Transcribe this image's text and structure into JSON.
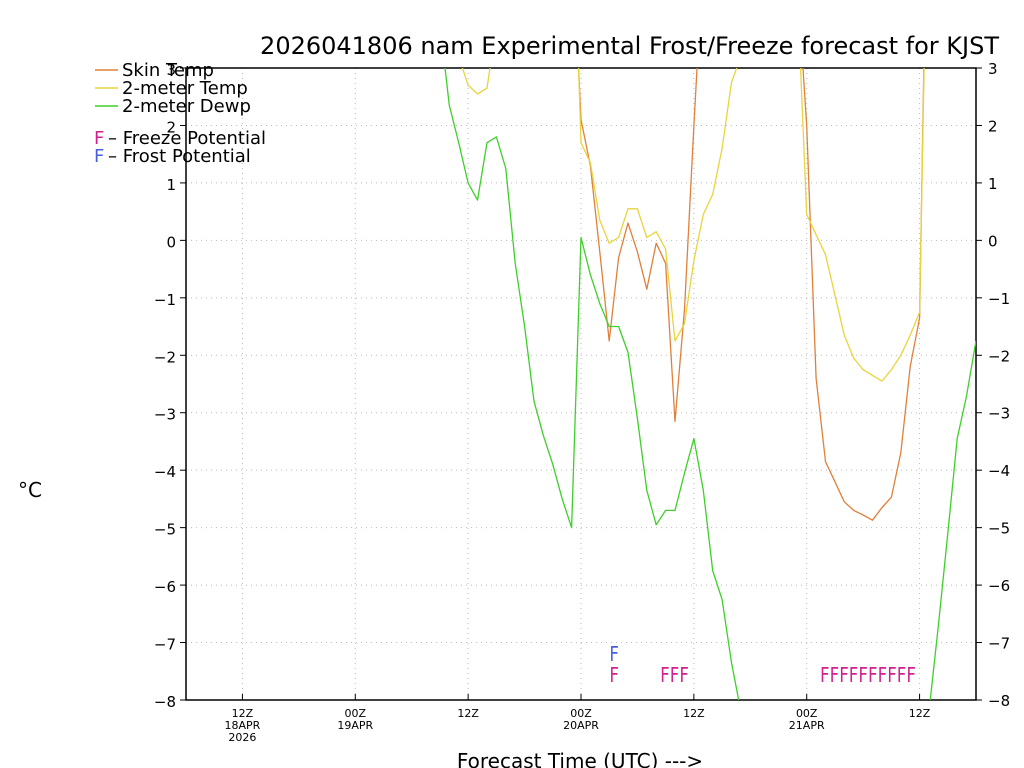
{
  "chart_data": {
    "type": "line",
    "title": "2026041806 nam Experimental Frost/Freeze forecast for KJST",
    "ylabel": "°C",
    "xlabel": "Forecast Time (UTC) --->",
    "ylim": [
      -8,
      3
    ],
    "xlim": [
      0,
      84
    ],
    "yticks": [
      -8,
      -7,
      -6,
      -5,
      -4,
      -3,
      -2,
      -1,
      0,
      1,
      2,
      3
    ],
    "xticks": [
      {
        "x": 6,
        "labels": [
          "12Z",
          "18APR",
          "2026"
        ]
      },
      {
        "x": 18,
        "labels": [
          "00Z",
          "19APR"
        ]
      },
      {
        "x": 30,
        "labels": [
          "12Z"
        ]
      },
      {
        "x": 42,
        "labels": [
          "00Z",
          "20APR"
        ]
      },
      {
        "x": 54,
        "labels": [
          "12Z"
        ]
      },
      {
        "x": 66,
        "labels": [
          "00Z",
          "21APR"
        ]
      },
      {
        "x": 78,
        "labels": [
          "12Z"
        ]
      }
    ],
    "legend": {
      "series": [
        "Skin Temp",
        "2-meter Temp",
        "2-meter Dewp"
      ],
      "markers": [
        {
          "symbol": "F",
          "text": " – Freeze Potential",
          "color": "#d0218e"
        },
        {
          "symbol": "F",
          "text": " – Frost Potential",
          "color": "#4a5fe0"
        }
      ]
    },
    "series": [
      {
        "name": "Skin Temp",
        "color": "#e0803a",
        "x": [
          41.6,
          42,
          43,
          44,
          45,
          46,
          47,
          48,
          49,
          50,
          51,
          52,
          53,
          54,
          54.5,
          65.4,
          66,
          67,
          68,
          69,
          70,
          71,
          72,
          73,
          74,
          75,
          76,
          77,
          78,
          78.5
        ],
        "y": [
          3.5,
          2.1,
          1.3,
          -0.2,
          -1.75,
          -0.3,
          0.3,
          -0.2,
          -0.85,
          -0.05,
          -0.4,
          -3.15,
          -1.2,
          2.0,
          3.5,
          3.5,
          2.0,
          -2.4,
          -3.85,
          -4.2,
          -4.55,
          -4.7,
          -4.78,
          -4.87,
          -4.65,
          -4.47,
          -3.7,
          -2.2,
          -1.35,
          3.5
        ]
      },
      {
        "name": "2-meter Temp",
        "color": "#e8d43c",
        "x": [
          29,
          30,
          31,
          32,
          32.5,
          41.7,
          42,
          43,
          44,
          45,
          46,
          47,
          48,
          49,
          50,
          51,
          52,
          53,
          54,
          55,
          56,
          57,
          58,
          59,
          65.3,
          66,
          67,
          68,
          69,
          70,
          71,
          72,
          73,
          74,
          75,
          76,
          77,
          78,
          78.5
        ],
        "y": [
          3.2,
          2.7,
          2.55,
          2.65,
          3.2,
          3.2,
          1.7,
          1.35,
          0.35,
          -0.05,
          0.05,
          0.55,
          0.55,
          0.05,
          0.15,
          -0.15,
          -1.75,
          -1.45,
          -0.35,
          0.45,
          0.8,
          1.6,
          2.75,
          3.2,
          3.2,
          0.45,
          0.1,
          -0.25,
          -0.95,
          -1.65,
          -2.05,
          -2.25,
          -2.35,
          -2.45,
          -2.25,
          -2.0,
          -1.65,
          -1.25,
          3.2
        ]
      },
      {
        "name": "2-meter Dewp",
        "color": "#3fcf2a",
        "x": [
          27.4,
          28,
          29,
          30,
          31,
          32,
          33,
          34,
          35,
          36,
          37,
          38,
          39,
          40,
          41,
          42,
          43,
          44,
          45,
          46,
          47,
          48,
          49,
          50,
          51,
          52,
          53,
          54,
          55,
          56,
          57,
          58,
          59,
          60,
          61,
          62,
          63,
          64,
          65,
          66,
          67,
          68,
          69,
          70,
          71,
          72,
          73,
          74,
          75,
          76,
          77,
          78,
          79,
          80,
          81,
          82,
          83,
          84
        ],
        "y": [
          3.2,
          2.35,
          1.7,
          1.0,
          0.7,
          1.7,
          1.8,
          1.25,
          -0.4,
          -1.5,
          -2.8,
          -3.4,
          -3.9,
          -4.5,
          -5.0,
          0.05,
          -0.6,
          -1.1,
          -1.5,
          -1.5,
          -1.95,
          -3.1,
          -4.35,
          -4.95,
          -4.7,
          -4.7,
          -4.05,
          -3.45,
          -4.35,
          -5.75,
          -6.25,
          -7.35,
          -8.2,
          -8.2,
          -8.2,
          -8.2,
          -8.2,
          -8.2,
          -8.2,
          -8.2,
          -8.2,
          -8.2,
          -8.2,
          -8.2,
          -8.2,
          -8.2,
          -8.2,
          -8.2,
          -8.2,
          -8.2,
          -8.2,
          -8.2,
          -8.2,
          -6.7,
          -5.1,
          -3.45,
          -2.7,
          -1.75
        ]
      }
    ],
    "annotations": [
      {
        "text": "F",
        "x": 45,
        "y": -7.18,
        "color": "#4a5fe0",
        "meaning": "Frost Potential"
      },
      {
        "text": "F",
        "x": 45,
        "y": -7.55,
        "color": "#d0218e",
        "meaning": "Freeze Potential"
      },
      {
        "text": "FFF",
        "x": 50.4,
        "y": -7.55,
        "color": "#d0218e",
        "meaning": "Freeze Potential"
      },
      {
        "text": "FFFFFFFFFF",
        "x": 67.4,
        "y": -7.55,
        "color": "#d0218e",
        "meaning": "Freeze Potential"
      }
    ]
  }
}
